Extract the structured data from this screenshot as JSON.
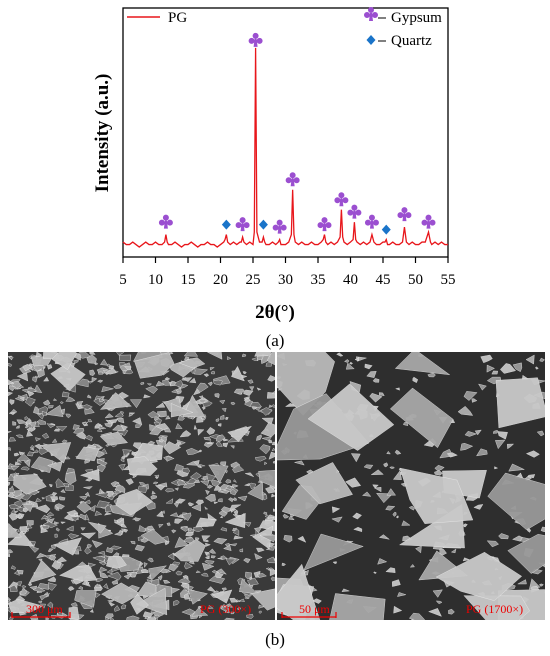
{
  "chart_data": {
    "type": "line",
    "xlabel": "2θ(°)",
    "ylabel": "Intensity (a.u.)",
    "xlim": [
      5,
      55
    ],
    "xticks": [
      5,
      10,
      15,
      20,
      25,
      30,
      35,
      40,
      45,
      50,
      55
    ],
    "ylim": [
      0,
      100
    ],
    "series": [
      {
        "name": "PG",
        "color": "#e8161b",
        "x": [
          5,
          5.5,
          6,
          6.5,
          7,
          7.5,
          8,
          8.5,
          9,
          9.5,
          10,
          10.5,
          11,
          11.4,
          11.6,
          11.8,
          12,
          12.5,
          13,
          13.5,
          14,
          14.5,
          15,
          15.5,
          16,
          16.5,
          17,
          17.5,
          18,
          18.5,
          19,
          19.5,
          20,
          20.5,
          20.7,
          20.9,
          21.1,
          21.5,
          22,
          22.5,
          23,
          23.2,
          23.4,
          23.6,
          24,
          24.5,
          25,
          25.2,
          25.4,
          25.6,
          26,
          26.4,
          26.6,
          26.8,
          27,
          27.5,
          28,
          28.5,
          28.9,
          29.1,
          29.3,
          29.5,
          30,
          30.5,
          30.9,
          31.1,
          31.3,
          31.5,
          32,
          32.5,
          33,
          33.5,
          34,
          34.5,
          35,
          35.5,
          35.8,
          36,
          36.2,
          36.5,
          37,
          37.5,
          38,
          38.4,
          38.6,
          38.8,
          39,
          39.5,
          40,
          40.4,
          40.6,
          40.8,
          41,
          41.5,
          42,
          42.5,
          43,
          43.3,
          43.6,
          44,
          44.5,
          45,
          45.3,
          45.5,
          45.7,
          46,
          46.5,
          47,
          47.5,
          48,
          48.3,
          48.6,
          49,
          49.5,
          50,
          50.5,
          51,
          51.5,
          52,
          52.3,
          52.5,
          53,
          53.5,
          54,
          54.5,
          55
        ],
        "values": [
          6,
          5,
          5,
          6,
          5,
          4,
          5,
          6,
          5,
          5,
          6,
          5,
          5,
          6,
          9,
          6,
          5,
          5,
          6,
          5,
          4,
          5,
          5,
          6,
          5,
          4,
          5,
          5,
          6,
          5,
          5,
          4,
          5,
          6,
          7,
          9,
          6,
          5,
          6,
          5,
          6,
          6,
          8,
          6,
          5,
          6,
          5,
          10,
          84,
          10,
          6,
          6,
          8,
          6,
          5,
          5,
          6,
          5,
          6,
          7,
          5,
          5,
          5,
          6,
          9,
          27,
          9,
          6,
          5,
          6,
          5,
          5,
          6,
          5,
          5,
          6,
          7,
          9,
          6,
          5,
          6,
          5,
          6,
          8,
          19,
          8,
          6,
          5,
          6,
          7,
          14,
          7,
          6,
          5,
          6,
          5,
          6,
          9,
          6,
          5,
          5,
          6,
          6,
          7,
          5,
          5,
          6,
          5,
          5,
          6,
          12,
          6,
          5,
          6,
          5,
          5,
          6,
          6,
          10,
          6,
          5,
          6,
          5,
          6,
          5,
          5
        ]
      },
      {
        "name": "Gypsum",
        "color": "#9b4fd0",
        "marker": "club",
        "x": [
          11.6,
          23.4,
          25.4,
          29.1,
          31.1,
          36.0,
          38.6,
          40.6,
          43.3,
          48.3,
          52.0
        ],
        "values": [
          13,
          12,
          86,
          11,
          30,
          12,
          22,
          17,
          13,
          16,
          13
        ]
      },
      {
        "name": "Quartz",
        "color": "#1a74c9",
        "marker": "diamond",
        "x": [
          20.9,
          26.6,
          45.5
        ],
        "values": [
          13,
          13,
          11
        ]
      }
    ]
  },
  "caption_a": "(a)",
  "images": [
    {
      "scale_bar": "300 μm",
      "label": "PG (300×)"
    },
    {
      "scale_bar": "50 μm",
      "label": "PG (1700×)"
    }
  ],
  "caption_b": "(b)"
}
